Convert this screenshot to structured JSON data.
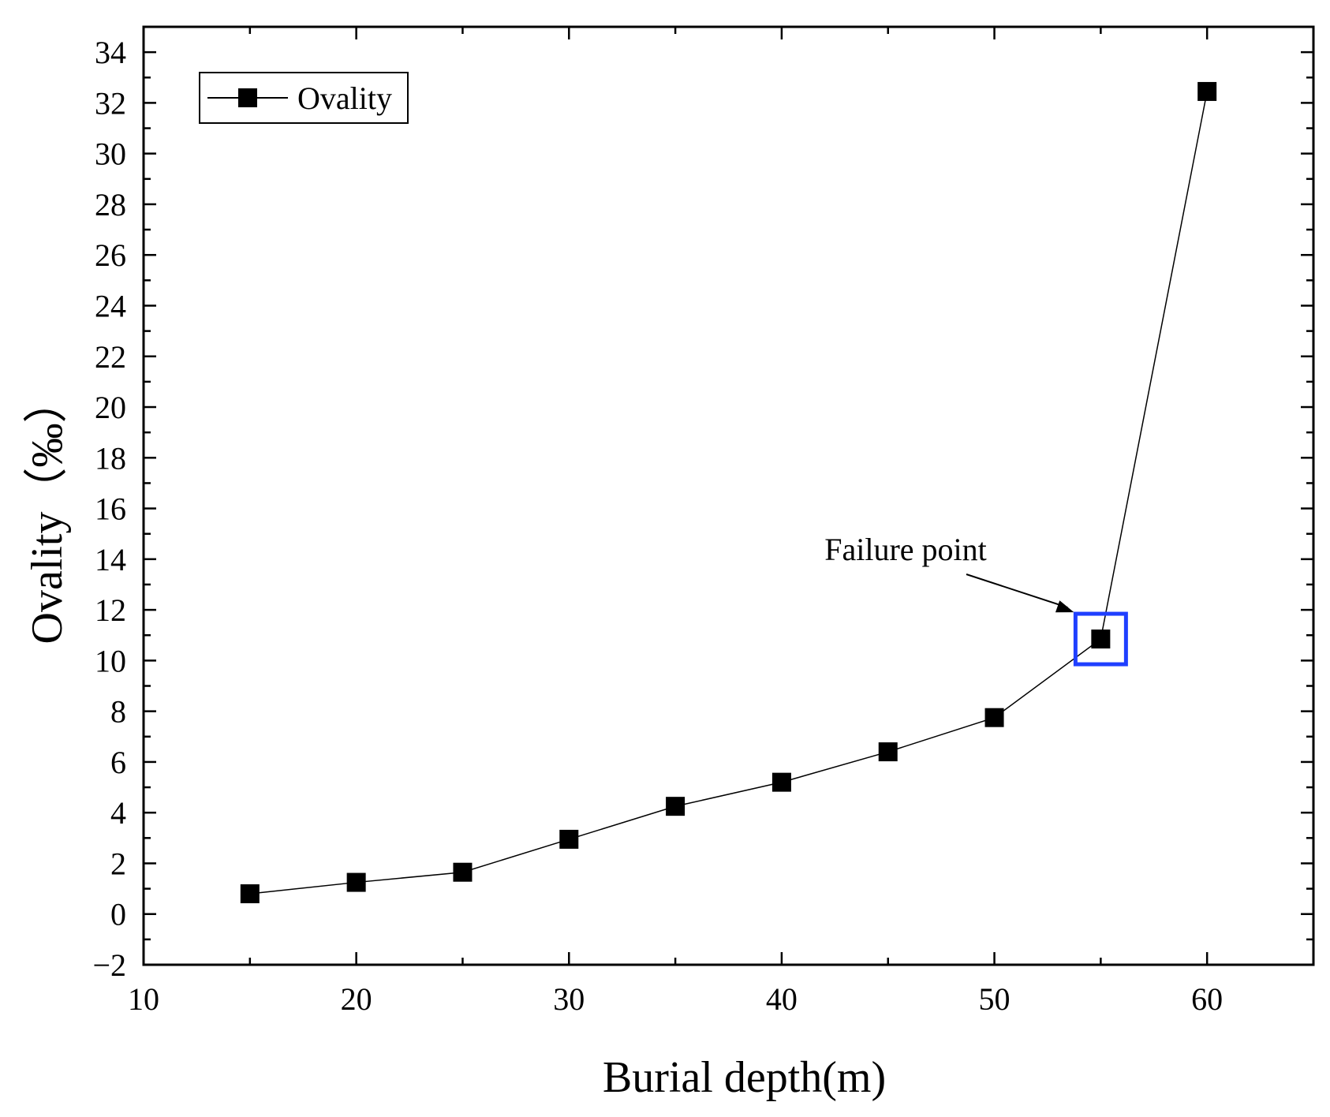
{
  "chart_data": {
    "type": "line",
    "title": "",
    "xlabel": "Burial depth(m)",
    "ylabel": "Ovality（‰）",
    "xlim": [
      10,
      65
    ],
    "ylim": [
      -2,
      35
    ],
    "xticks": [
      10,
      20,
      30,
      40,
      50,
      60
    ],
    "yticks": [
      -2,
      0,
      2,
      4,
      6,
      8,
      10,
      12,
      14,
      16,
      18,
      20,
      22,
      24,
      26,
      28,
      30,
      32,
      34
    ],
    "grid": false,
    "legend_position": "top-left",
    "series": [
      {
        "name": "Ovality",
        "marker": "square",
        "color": "#000000",
        "x": [
          15,
          20,
          25,
          30,
          35,
          40,
          45,
          50,
          55,
          60
        ],
        "y": [
          0.8,
          1.25,
          1.65,
          2.95,
          4.25,
          5.2,
          6.4,
          7.75,
          10.85,
          32.45
        ]
      }
    ],
    "annotations": [
      {
        "text": "Failure point",
        "target_x": 55,
        "target_y": 10.85,
        "highlight_color": "#1f3fff"
      }
    ]
  }
}
